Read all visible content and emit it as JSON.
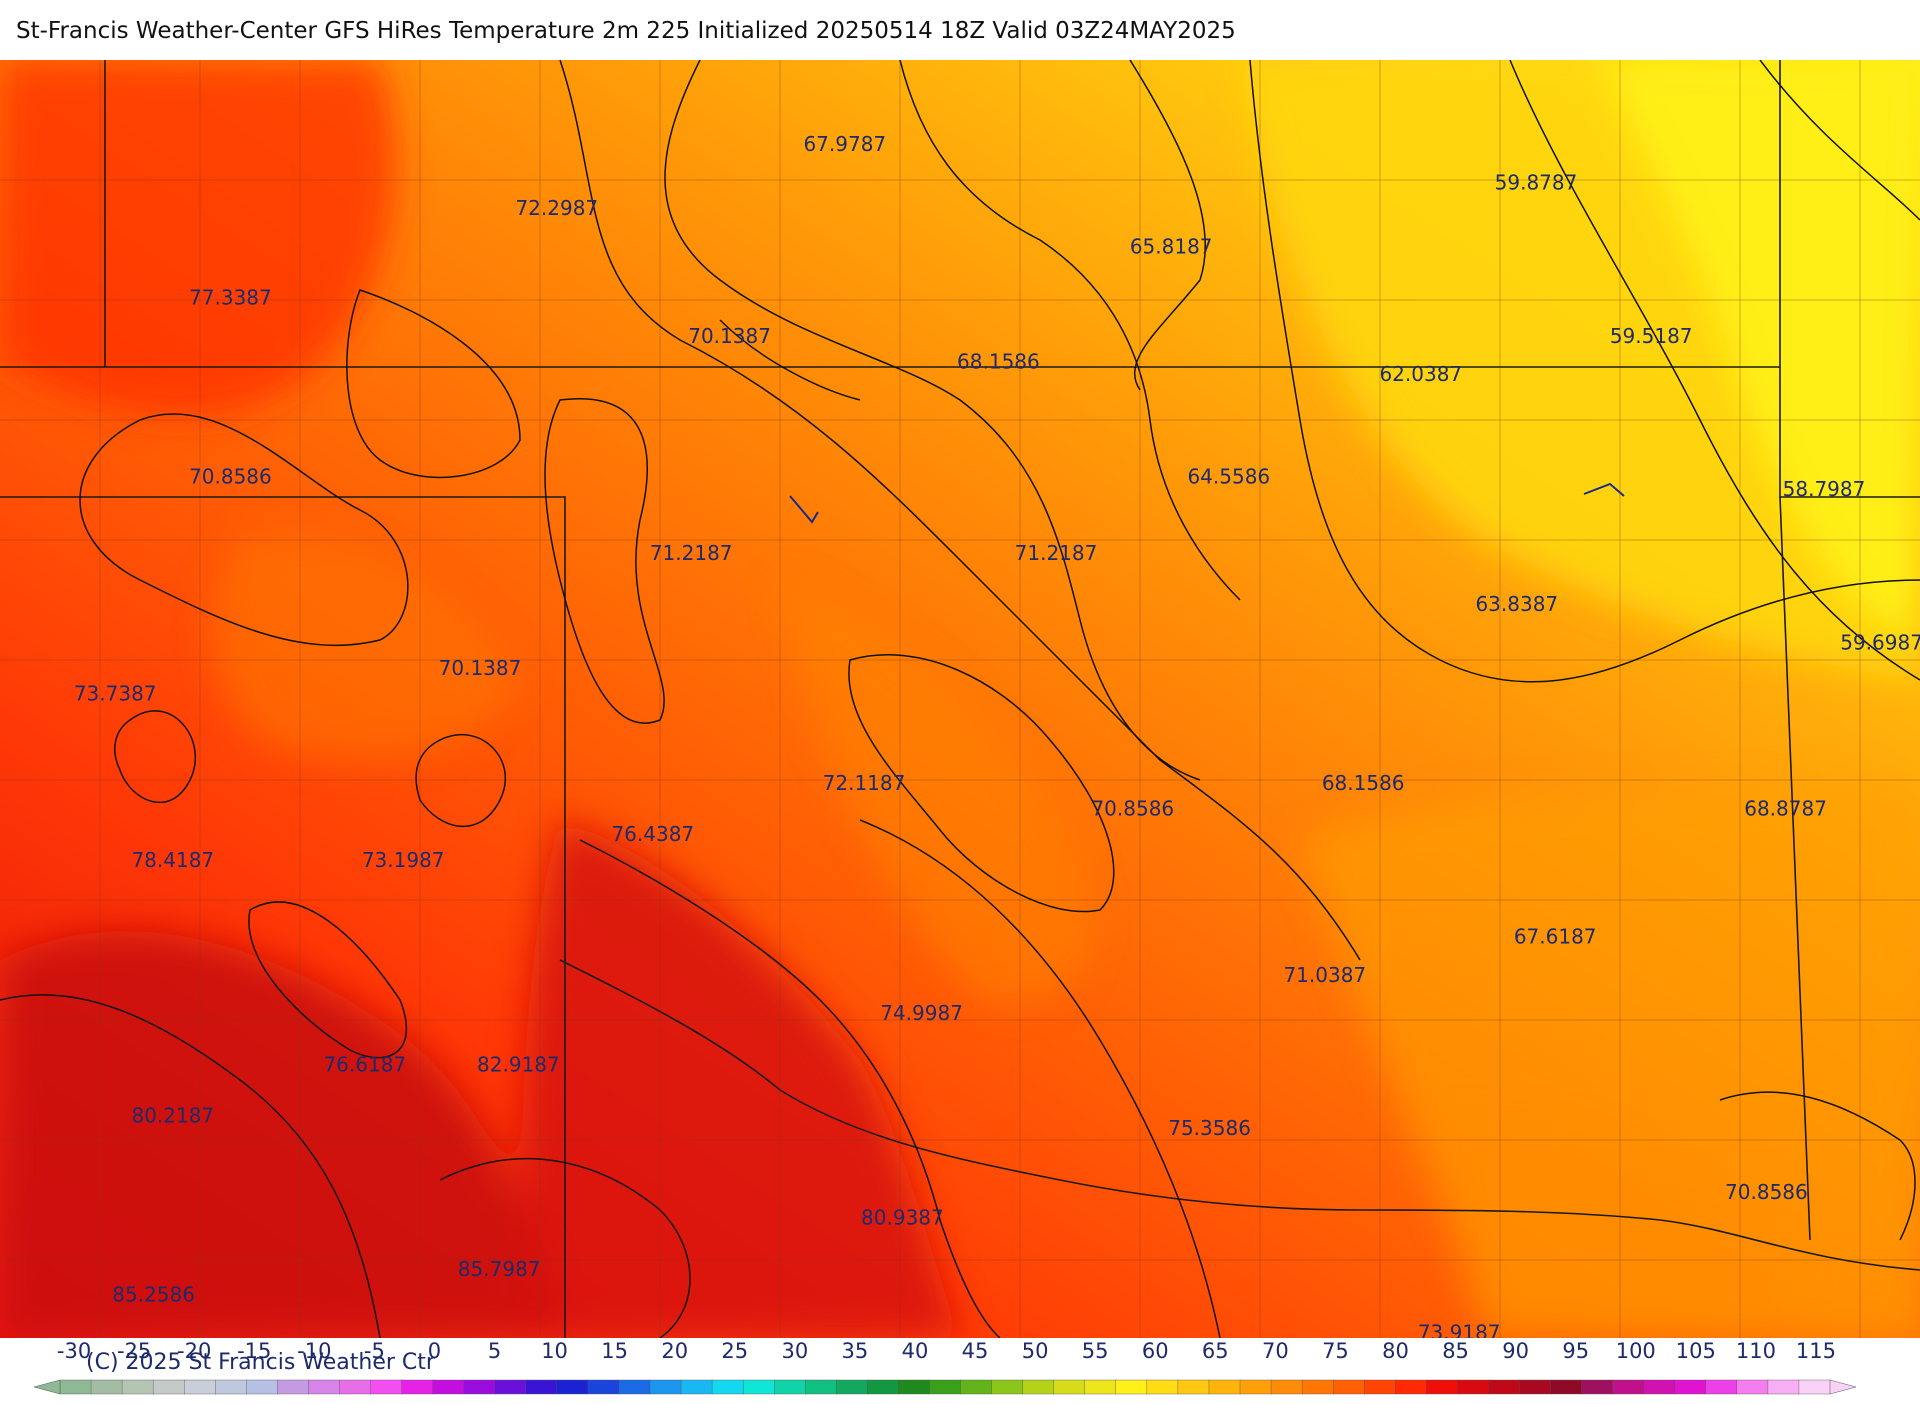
{
  "title": "St-Francis Weather-Center GFS HiRes Temperature 2m  225 Initialized 20250514 18Z Valid 03Z24MAY2025",
  "copyright": "(C) 2025 St Francis Weather Ctr",
  "map_labels": [
    {
      "text": "67.9787",
      "lon": 0.44,
      "lat": 0.04
    },
    {
      "text": "72.2987",
      "lon": 0.29,
      "lat": 0.09
    },
    {
      "text": "77.3387",
      "lon": 0.12,
      "lat": 0.16
    },
    {
      "text": "65.8187",
      "lon": 0.61,
      "lat": 0.12
    },
    {
      "text": "59.8787",
      "lon": 0.8,
      "lat": 0.07
    },
    {
      "text": "70.1387",
      "lon": 0.38,
      "lat": 0.19
    },
    {
      "text": "68.1586",
      "lon": 0.52,
      "lat": 0.21
    },
    {
      "text": "62.0387",
      "lon": 0.74,
      "lat": 0.22
    },
    {
      "text": "59.5187",
      "lon": 0.86,
      "lat": 0.19
    },
    {
      "text": "70.8586",
      "lon": 0.12,
      "lat": 0.3
    },
    {
      "text": "64.5586",
      "lon": 0.64,
      "lat": 0.3
    },
    {
      "text": "58.7987",
      "lon": 0.95,
      "lat": 0.31
    },
    {
      "text": "71.2187",
      "lon": 0.36,
      "lat": 0.36
    },
    {
      "text": "71.2187",
      "lon": 0.55,
      "lat": 0.36
    },
    {
      "text": "63.8387",
      "lon": 0.79,
      "lat": 0.4
    },
    {
      "text": "59.6987",
      "lon": 0.98,
      "lat": 0.43
    },
    {
      "text": "73.7387",
      "lon": 0.06,
      "lat": 0.47
    },
    {
      "text": "70.1387",
      "lon": 0.25,
      "lat": 0.45
    },
    {
      "text": "72.1187",
      "lon": 0.45,
      "lat": 0.54
    },
    {
      "text": "70.8586",
      "lon": 0.59,
      "lat": 0.56
    },
    {
      "text": "68.1586",
      "lon": 0.71,
      "lat": 0.54
    },
    {
      "text": "68.8787",
      "lon": 0.93,
      "lat": 0.56
    },
    {
      "text": "78.4187",
      "lon": 0.09,
      "lat": 0.6
    },
    {
      "text": "73.1987",
      "lon": 0.21,
      "lat": 0.6
    },
    {
      "text": "76.4387",
      "lon": 0.34,
      "lat": 0.58
    },
    {
      "text": "67.6187",
      "lon": 0.81,
      "lat": 0.66
    },
    {
      "text": "71.0387",
      "lon": 0.69,
      "lat": 0.69
    },
    {
      "text": "74.9987",
      "lon": 0.48,
      "lat": 0.72
    },
    {
      "text": "76.6187",
      "lon": 0.19,
      "lat": 0.76
    },
    {
      "text": "82.9187",
      "lon": 0.27,
      "lat": 0.76
    },
    {
      "text": "80.2187",
      "lon": 0.09,
      "lat": 0.8
    },
    {
      "text": "75.3586",
      "lon": 0.63,
      "lat": 0.81
    },
    {
      "text": "70.8586",
      "lon": 0.92,
      "lat": 0.86
    },
    {
      "text": "80.9387",
      "lon": 0.47,
      "lat": 0.88
    },
    {
      "text": "85.2586",
      "lon": 0.08,
      "lat": 0.94
    },
    {
      "text": "85.7987",
      "lon": 0.26,
      "lat": 0.92
    },
    {
      "text": "73.9187",
      "lon": 0.76,
      "lat": 0.97
    }
  ],
  "legend": {
    "tick_labels": [
      "-30",
      "-25",
      "-20",
      "-15",
      "-10",
      "-5",
      "0",
      "5",
      "10",
      "15",
      "20",
      "25",
      "30",
      "35",
      "40",
      "45",
      "50",
      "55",
      "60",
      "65",
      "70",
      "75",
      "80",
      "85",
      "90",
      "95",
      "100",
      "105",
      "110",
      "115"
    ],
    "colors": [
      "#8fb894",
      "#a2bda3",
      "#b4c5b4",
      "#c3cac8",
      "#c8cfd8",
      "#c0c8dd",
      "#b6c0e4",
      "#c49be2",
      "#d883e8",
      "#e86ee8",
      "#f24ef0",
      "#e622e6",
      "#c40ee0",
      "#9a0bde",
      "#6a10d8",
      "#3a14d4",
      "#1a22d4",
      "#1a44dc",
      "#1a6ae6",
      "#1a96ee",
      "#1ab8f2",
      "#12d8f0",
      "#10e6d8",
      "#10d4a8",
      "#10c080",
      "#12a860",
      "#129840",
      "#1e8a1e",
      "#3aa01c",
      "#62b41a",
      "#8cc61a",
      "#b4d21a",
      "#d6dc1a",
      "#ece61a",
      "#fff019",
      "#ffdc14",
      "#ffc810",
      "#ffb40c",
      "#ffa00a",
      "#ff8c08",
      "#ff7606",
      "#ff6004",
      "#ff4404",
      "#ff2a04",
      "#f00f08",
      "#d80a10",
      "#c00818",
      "#a80820",
      "#900a28",
      "#a01060",
      "#c0108c",
      "#d012b0",
      "#e014d0",
      "#ee40e8",
      "#f47ef0",
      "#f8aef4",
      "#fad2f8"
    ],
    "min": -33,
    "max": 118
  }
}
